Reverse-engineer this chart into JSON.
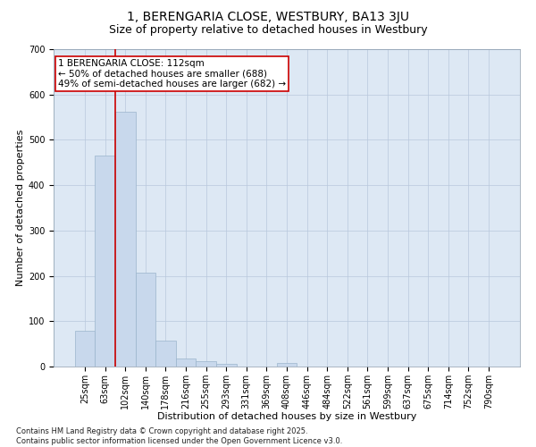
{
  "title": "1, BERENGARIA CLOSE, WESTBURY, BA13 3JU",
  "subtitle": "Size of property relative to detached houses in Westbury",
  "xlabel": "Distribution of detached houses by size in Westbury",
  "ylabel": "Number of detached properties",
  "categories": [
    "25sqm",
    "63sqm",
    "102sqm",
    "140sqm",
    "178sqm",
    "216sqm",
    "255sqm",
    "293sqm",
    "331sqm",
    "369sqm",
    "408sqm",
    "446sqm",
    "484sqm",
    "522sqm",
    "561sqm",
    "599sqm",
    "637sqm",
    "675sqm",
    "714sqm",
    "752sqm",
    "790sqm"
  ],
  "values": [
    78,
    465,
    562,
    208,
    58,
    17,
    12,
    5,
    0,
    0,
    7,
    0,
    0,
    0,
    0,
    0,
    0,
    0,
    0,
    0,
    0
  ],
  "bar_color": "#c8d8ec",
  "bar_edge_color": "#9ab4cc",
  "vline_x": 1.5,
  "vline_color": "#cc0000",
  "annotation_text": "1 BERENGARIA CLOSE: 112sqm\n← 50% of detached houses are smaller (688)\n49% of semi-detached houses are larger (682) →",
  "annotation_box_facecolor": "#ffffff",
  "annotation_box_edgecolor": "#cc0000",
  "ylim": [
    0,
    700
  ],
  "yticks": [
    0,
    100,
    200,
    300,
    400,
    500,
    600,
    700
  ],
  "grid_color": "#b8c8dc",
  "background_color": "#dde8f4",
  "footer_text": "Contains HM Land Registry data © Crown copyright and database right 2025.\nContains public sector information licensed under the Open Government Licence v3.0.",
  "title_fontsize": 10,
  "subtitle_fontsize": 9,
  "axis_label_fontsize": 8,
  "tick_fontsize": 7,
  "annotation_fontsize": 7.5,
  "footer_fontsize": 6
}
